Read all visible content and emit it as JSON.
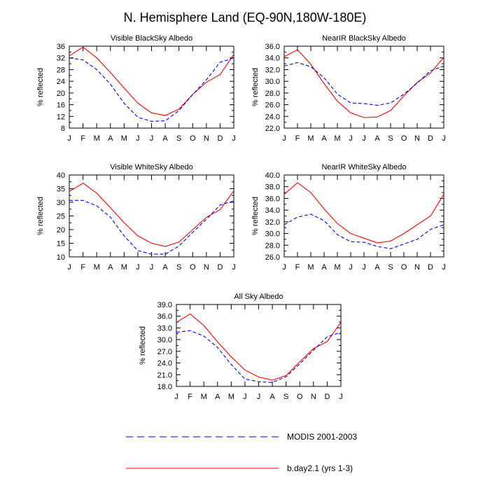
{
  "title": "N. Hemisphere Land (EQ-90N,180W-180E)",
  "colors": {
    "modis": "#0000ff",
    "model": "#ff0000",
    "axis": "#000000"
  },
  "legend": [
    {
      "key": "modis",
      "label": "MODIS 2001-2003",
      "style": "dashed"
    },
    {
      "key": "model",
      "label": "b.day2.1 (yrs 1-3)",
      "style": "solid"
    }
  ],
  "chart_data": [
    {
      "type": "line",
      "title": "Visible BlackSky Albedo",
      "ylabel": "% reflected",
      "xticks": [
        "J",
        "F",
        "M",
        "A",
        "M",
        "J",
        "J",
        "A",
        "S",
        "O",
        "N",
        "D",
        "J"
      ],
      "ylim": [
        8,
        36
      ],
      "yticks": [
        "8",
        "12",
        "16",
        "20",
        "24",
        "28",
        "32",
        "36"
      ],
      "series": [
        {
          "name": "b.day2.1 (yrs 1-3)",
          "key": "model",
          "values": [
            32.7,
            35.7,
            32.0,
            27.0,
            21.7,
            16.5,
            13.2,
            12.3,
            14.5,
            19.5,
            23.7,
            26.3,
            33.2
          ]
        },
        {
          "name": "MODIS 2001-2003",
          "key": "modis",
          "values": [
            32.0,
            31.3,
            28.0,
            23.0,
            16.5,
            11.7,
            10.3,
            10.5,
            14.0,
            19.5,
            24.5,
            30.5,
            32.0
          ]
        }
      ]
    },
    {
      "type": "line",
      "title": "NearIR BlackSky Albedo",
      "ylabel": "% reflected",
      "xticks": [
        "J",
        "F",
        "M",
        "A",
        "M",
        "J",
        "J",
        "A",
        "S",
        "O",
        "N",
        "D",
        "J"
      ],
      "ylim": [
        22,
        36
      ],
      "yticks": [
        "22.0",
        "24.0",
        "26.0",
        "28.0",
        "30.0",
        "32.0",
        "34.0",
        "36.0"
      ],
      "series": [
        {
          "name": "b.day2.1 (yrs 1-3)",
          "key": "model",
          "values": [
            34.2,
            35.4,
            32.9,
            29.6,
            26.6,
            24.6,
            23.8,
            23.9,
            25.0,
            27.5,
            29.8,
            31.4,
            34.1
          ]
        },
        {
          "name": "MODIS 2001-2003",
          "key": "modis",
          "values": [
            32.6,
            33.2,
            32.5,
            30.6,
            27.8,
            26.3,
            26.2,
            25.9,
            26.3,
            27.8,
            29.7,
            31.8,
            32.6
          ]
        }
      ]
    },
    {
      "type": "line",
      "title": "Visible WhiteSky Albedo",
      "ylabel": "% reflected",
      "xticks": [
        "J",
        "F",
        "M",
        "A",
        "M",
        "J",
        "J",
        "A",
        "S",
        "O",
        "N",
        "D",
        "J"
      ],
      "ylim": [
        10,
        40
      ],
      "yticks": [
        "10",
        "15",
        "20",
        "25",
        "30",
        "35",
        "40"
      ],
      "series": [
        {
          "name": "b.day2.1 (yrs 1-3)",
          "key": "model",
          "values": [
            34.0,
            37.0,
            33.3,
            28.0,
            22.5,
            17.7,
            15.0,
            13.8,
            15.5,
            20.0,
            24.5,
            27.3,
            34.2
          ]
        },
        {
          "name": "MODIS 2001-2003",
          "key": "modis",
          "values": [
            30.7,
            30.7,
            28.7,
            24.5,
            17.7,
            12.3,
            11.0,
            11.0,
            14.0,
            19.0,
            23.8,
            29.0,
            30.5
          ]
        }
      ]
    },
    {
      "type": "line",
      "title": "NearIR WhiteSky Albedo",
      "ylabel": "% reflected",
      "xticks": [
        "J",
        "F",
        "M",
        "A",
        "M",
        "J",
        "J",
        "A",
        "S",
        "O",
        "N",
        "D",
        "J"
      ],
      "ylim": [
        26,
        40
      ],
      "yticks": [
        "26.0",
        "28.0",
        "30.0",
        "32.0",
        "34.0",
        "36.0",
        "38.0",
        "40.0"
      ],
      "series": [
        {
          "name": "b.day2.1 (yrs 1-3)",
          "key": "model",
          "values": [
            36.7,
            38.7,
            37.0,
            34.2,
            31.7,
            30.0,
            29.2,
            28.4,
            28.7,
            30.0,
            31.5,
            33.0,
            36.7
          ]
        },
        {
          "name": "MODIS 2001-2003",
          "key": "modis",
          "values": [
            31.5,
            32.8,
            33.3,
            32.2,
            29.8,
            28.6,
            28.5,
            27.8,
            27.4,
            28.2,
            29.0,
            30.7,
            31.5
          ]
        }
      ]
    },
    {
      "type": "line",
      "title": "All Sky Albedo",
      "ylabel": "% reflected",
      "xticks": [
        "J",
        "F",
        "M",
        "A",
        "M",
        "J",
        "J",
        "A",
        "S",
        "O",
        "N",
        "D",
        "J"
      ],
      "ylim": [
        18,
        39
      ],
      "yticks": [
        "18.0",
        "21.0",
        "24.0",
        "27.0",
        "30.0",
        "33.0",
        "36.0",
        "39.0"
      ],
      "series": [
        {
          "name": "b.day2.1 (yrs 1-3)",
          "key": "model",
          "values": [
            34.4,
            36.6,
            33.6,
            29.4,
            25.6,
            22.2,
            20.4,
            19.6,
            20.8,
            24.3,
            27.7,
            29.5,
            34.4
          ]
        },
        {
          "name": "MODIS 2001-2003",
          "key": "modis",
          "values": [
            31.9,
            32.3,
            30.9,
            28.0,
            23.6,
            19.9,
            19.2,
            19.0,
            20.5,
            23.8,
            27.3,
            30.7,
            31.9
          ]
        }
      ]
    }
  ]
}
